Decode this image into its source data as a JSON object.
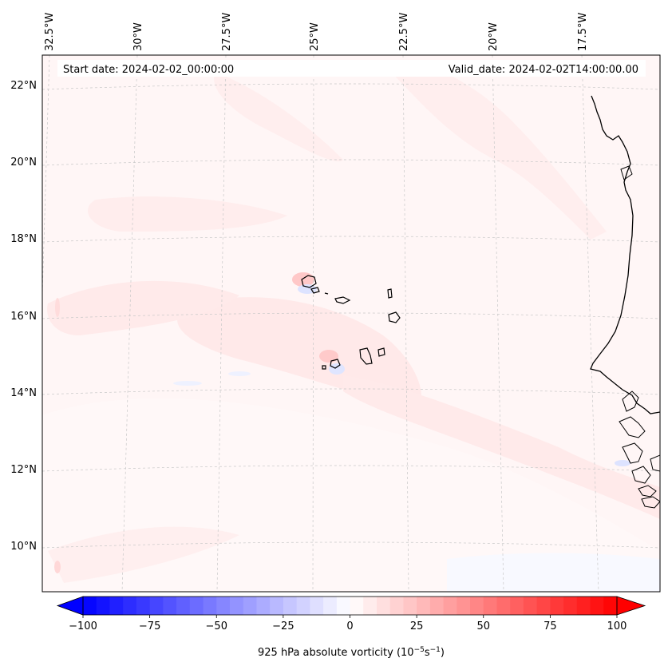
{
  "header": {
    "start_date": "Start date: 2024-02-02_00:00:00",
    "valid_date": "Valid_date: 2024-02-02T14:00:00.00"
  },
  "lon_labels": [
    "32.5°W",
    "30°W",
    "27.5°W",
    "25°W",
    "22.5°W",
    "20°W",
    "17.5°W"
  ],
  "lat_labels": [
    "22°N",
    "20°N",
    "18°N",
    "16°N",
    "14°N",
    "12°N",
    "10°N"
  ],
  "colorbar": {
    "label_main": "925 hPa absolute vorticity (10",
    "label_exp1": "−5",
    "label_mid": "s",
    "label_exp2": "−1",
    "label_end": ")",
    "min": -100,
    "max": 100,
    "tick_values": [
      -100,
      -75,
      -50,
      -25,
      0,
      25,
      50,
      75,
      100
    ],
    "tick_labels": [
      "−100",
      "−75",
      "−50",
      "−25",
      "0",
      "25",
      "50",
      "75",
      "100"
    ],
    "n_levels": 40,
    "color_neg": "#0000ff",
    "color_mid": "#ffffff",
    "color_pos": "#ff0000"
  },
  "colors": {
    "background_field": "#fff6f6",
    "light_pos": "#ffe4e4",
    "light_neg": "#e8ecff",
    "coastline": "#000000",
    "gridline": "#c8c8c8"
  }
}
